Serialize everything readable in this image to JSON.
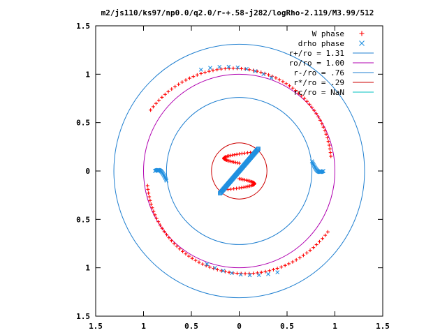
{
  "chart_data": {
    "type": "scatter",
    "title": "m2/js110/ks97/np0.0/q2.0/r-+.58-j282/logRho-2.119/M3.99/512",
    "xlim": [
      -1.5,
      1.5
    ],
    "ylim": [
      -1.5,
      1.5
    ],
    "x_tick_labels": [
      "1.5",
      "1",
      "0.5",
      "0",
      "0.5",
      "1",
      "1.5"
    ],
    "y_tick_labels": [
      "1.5",
      "1",
      "0.5",
      "0",
      "0.5",
      "1",
      "1.5"
    ],
    "x_tick_values": [
      -1.5,
      -1,
      -0.5,
      0,
      0.5,
      1,
      1.5
    ],
    "y_tick_values": [
      1.5,
      1,
      0.5,
      0,
      -0.5,
      -1,
      -1.5
    ],
    "legend_position": "top-right",
    "circles": [
      {
        "name": "r+/ro = 1.31",
        "r": 1.31,
        "color": "#1f7fd0"
      },
      {
        "name": "ro/ro = 1.00",
        "r": 1.0,
        "color": "#b000b0"
      },
      {
        "name": "r-/ro = .76",
        "r": 0.76,
        "color": "#1f7fd0"
      },
      {
        "name": "r*/ro = .29",
        "r": 0.29,
        "color": "#cc0000"
      },
      {
        "name": "rc/ro = NaN",
        "r": null,
        "color": "#00c0c0"
      }
    ],
    "series": [
      {
        "name": "W phase",
        "marker": "plus",
        "color": "#ff0000"
      },
      {
        "name": "drho phase",
        "marker": "cross",
        "color": "#1f8fe0"
      }
    ]
  }
}
